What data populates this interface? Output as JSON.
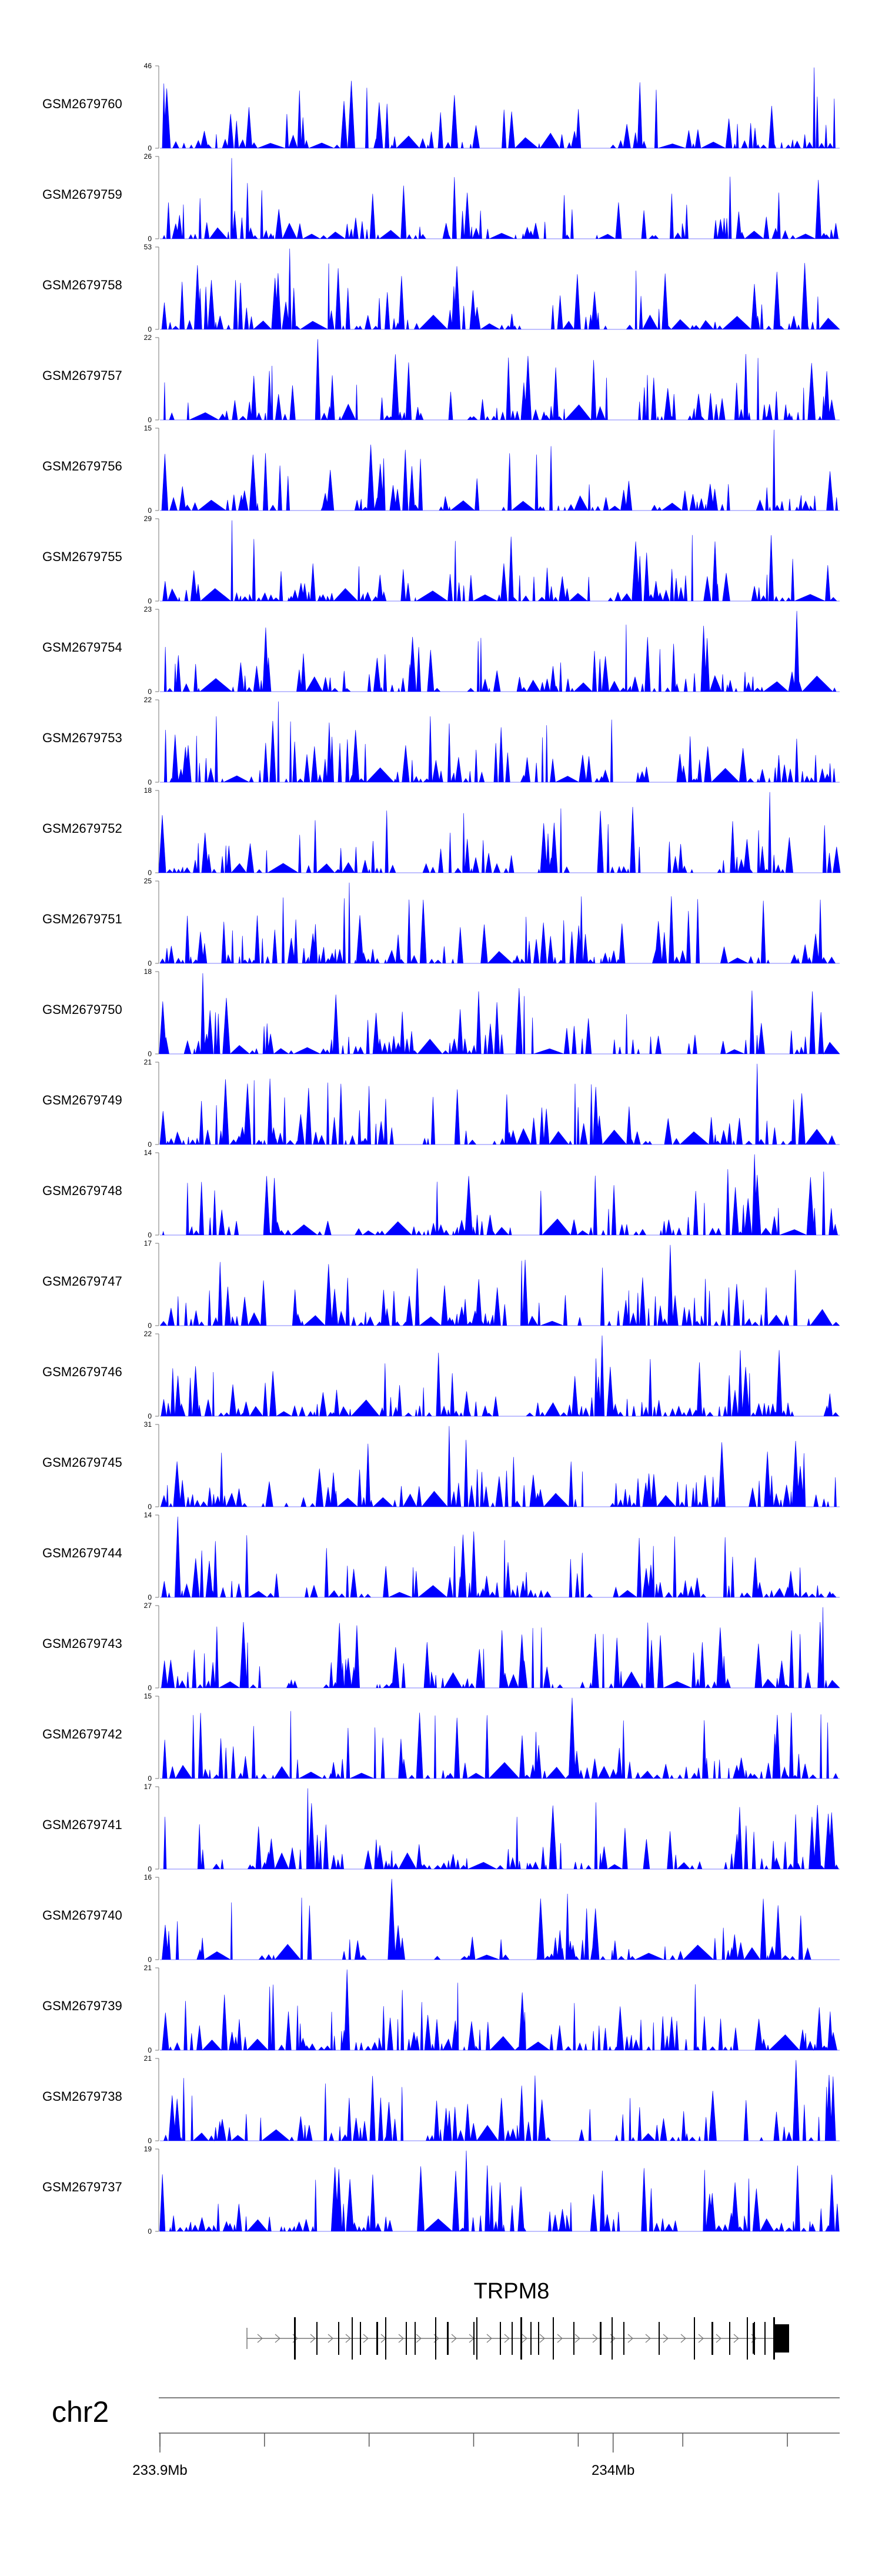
{
  "chart_data": {
    "type": "area",
    "color": "#0000ff",
    "chromosome": "chr2",
    "gene": "TRPM8",
    "x_range_mb": [
      233.9,
      234.05
    ],
    "x_ticks": [
      {
        "value_mb": 233.9,
        "label": "233.9Mb"
      },
      {
        "value_mb": 234.0,
        "label": "234Mb"
      }
    ],
    "tracks": [
      {
        "name": "GSM2679760",
        "ymax": "46",
        "ymin": "0"
      },
      {
        "name": "GSM2679759",
        "ymax": "26",
        "ymin": "0"
      },
      {
        "name": "GSM2679758",
        "ymax": "53",
        "ymin": "0"
      },
      {
        "name": "GSM2679757",
        "ymax": "22",
        "ymin": "0"
      },
      {
        "name": "GSM2679756",
        "ymax": "15",
        "ymin": "0"
      },
      {
        "name": "GSM2679755",
        "ymax": "29",
        "ymin": "0"
      },
      {
        "name": "GSM2679754",
        "ymax": "23",
        "ymin": "0"
      },
      {
        "name": "GSM2679753",
        "ymax": "22",
        "ymin": "0"
      },
      {
        "name": "GSM2679752",
        "ymax": "18",
        "ymin": "0"
      },
      {
        "name": "GSM2679751",
        "ymax": "25",
        "ymin": "0"
      },
      {
        "name": "GSM2679750",
        "ymax": "18",
        "ymin": "0"
      },
      {
        "name": "GSM2679749",
        "ymax": "21",
        "ymin": "0"
      },
      {
        "name": "GSM2679748",
        "ymax": "14",
        "ymin": "0"
      },
      {
        "name": "GSM2679747",
        "ymax": "17",
        "ymin": "0"
      },
      {
        "name": "GSM2679746",
        "ymax": "22",
        "ymin": "0"
      },
      {
        "name": "GSM2679745",
        "ymax": "31",
        "ymin": "0"
      },
      {
        "name": "GSM2679744",
        "ymax": "14",
        "ymin": "0"
      },
      {
        "name": "GSM2679743",
        "ymax": "27",
        "ymin": "0"
      },
      {
        "name": "GSM2679742",
        "ymax": "15",
        "ymin": "0"
      },
      {
        "name": "GSM2679741",
        "ymax": "17",
        "ymin": "0"
      },
      {
        "name": "GSM2679740",
        "ymax": "16",
        "ymin": "0"
      },
      {
        "name": "GSM2679739",
        "ymax": "21",
        "ymin": "0"
      },
      {
        "name": "GSM2679738",
        "ymax": "21",
        "ymin": "0"
      },
      {
        "name": "GSM2679737",
        "ymax": "19",
        "ymin": "0"
      }
    ]
  }
}
